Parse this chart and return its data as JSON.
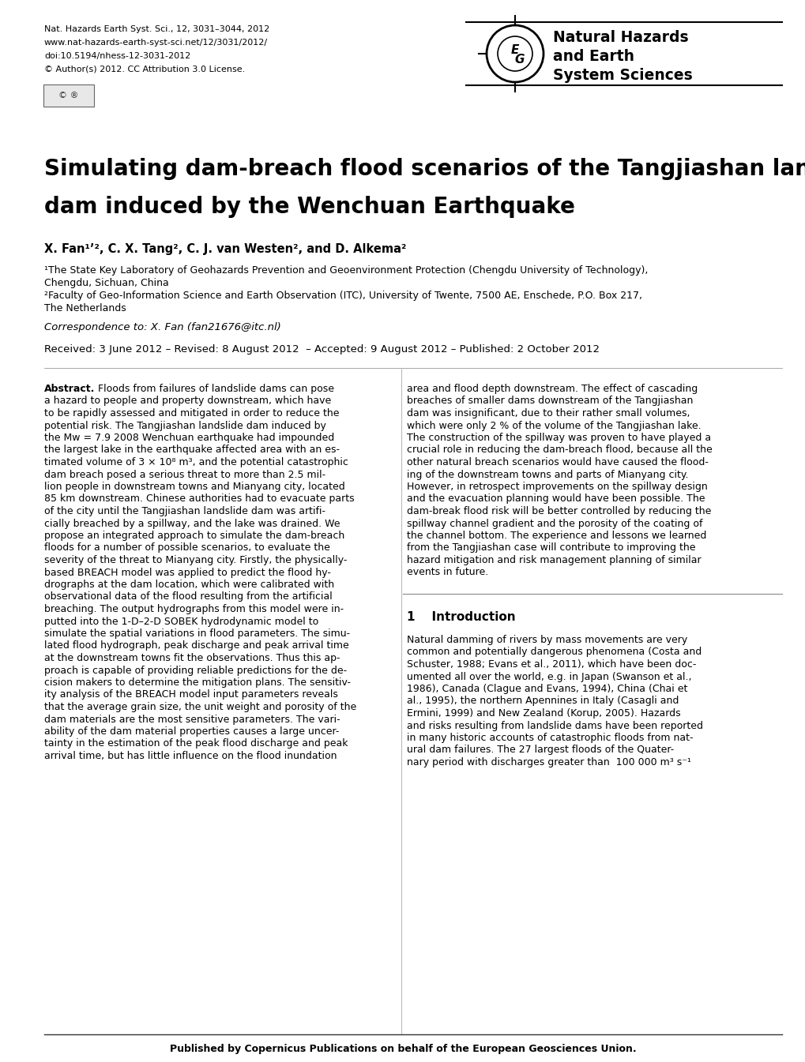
{
  "bg_color": "#ffffff",
  "header_left_lines": [
    "Nat. Hazards Earth Syst. Sci., 12, 3031–3044, 2012",
    "www.nat-hazards-earth-syst-sci.net/12/3031/2012/",
    "doi:10.5194/nhess-12-3031-2012",
    "© Author(s) 2012. CC Attribution 3.0 License."
  ],
  "journal_name_lines": [
    "Natural Hazards",
    "and Earth",
    "System Sciences"
  ],
  "paper_title_line1": "Simulating dam-breach flood scenarios of the Tangjiashan landslide",
  "paper_title_line2": "dam induced by the Wenchuan Earthquake",
  "authors_line": "X. Fan¹ʼ², C. X. Tang², C. J. van Westen², and D. Alkema²",
  "affil1a": "¹The State Key Laboratory of Geohazards Prevention and Geoenvironment Protection (Chengdu University of Technology),",
  "affil1b": "Chengdu, Sichuan, China",
  "affil2a": "²Faculty of Geo-Information Science and Earth Observation (ITC), University of Twente, 7500 AE, Enschede, P.O. Box 217,",
  "affil2b": "The Netherlands",
  "correspondence": "Correspondence to: X. Fan (fan21676@itc.nl)",
  "dates": "Received: 3 June 2012 – Revised: 8 August 2012  – Accepted: 9 August 2012 – Published: 2 October 2012",
  "abstract_label": "Abstract.",
  "abstract_left_lines": [
    "Floods from failures of landslide dams can pose",
    "a hazard to people and property downstream, which have",
    "to be rapidly assessed and mitigated in order to reduce the",
    "potential risk. The Tangjiashan landslide dam induced by",
    "the Mw = 7.9 2008 Wenchuan earthquake had impounded",
    "the largest lake in the earthquake affected area with an es-",
    "timated volume of 3 × 10⁸ m³, and the potential catastrophic",
    "dam breach posed a serious threat to more than 2.5 mil-",
    "lion people in downstream towns and Mianyang city, located",
    "85 km downstream. Chinese authorities had to evacuate parts",
    "of the city until the Tangjiashan landslide dam was artifi-",
    "cially breached by a spillway, and the lake was drained. We",
    "propose an integrated approach to simulate the dam-breach",
    "floods for a number of possible scenarios, to evaluate the",
    "severity of the threat to Mianyang city. Firstly, the physically-",
    "based BREACH model was applied to predict the flood hy-",
    "drographs at the dam location, which were calibrated with",
    "observational data of the flood resulting from the artificial",
    "breaching. The output hydrographs from this model were in-",
    "putted into the 1-D–2-D SOBEK hydrodynamic model to",
    "simulate the spatial variations in flood parameters. The simu-",
    "lated flood hydrograph, peak discharge and peak arrival time",
    "at the downstream towns fit the observations. Thus this ap-",
    "proach is capable of providing reliable predictions for the de-",
    "cision makers to determine the mitigation plans. The sensitiv-",
    "ity analysis of the BREACH model input parameters reveals",
    "that the average grain size, the unit weight and porosity of the",
    "dam materials are the most sensitive parameters. The vari-",
    "ability of the dam material properties causes a large uncer-",
    "tainty in the estimation of the peak flood discharge and peak",
    "arrival time, but has little influence on the flood inundation"
  ],
  "abstract_right_lines": [
    "area and flood depth downstream. The effect of cascading",
    "breaches of smaller dams downstream of the Tangjiashan",
    "dam was insignificant, due to their rather small volumes,",
    "which were only 2 % of the volume of the Tangjiashan lake.",
    "The construction of the spillway was proven to have played a",
    "crucial role in reducing the dam-breach flood, because all the",
    "other natural breach scenarios would have caused the flood-",
    "ing of the downstream towns and parts of Mianyang city.",
    "However, in retrospect improvements on the spillway design",
    "and the evacuation planning would have been possible. The",
    "dam-break flood risk will be better controlled by reducing the",
    "spillway channel gradient and the porosity of the coating of",
    "the channel bottom. The experience and lessons we learned",
    "from the Tangjiashan case will contribute to improving the",
    "hazard mitigation and risk management planning of similar",
    "events in future."
  ],
  "section1_title": "1    Introduction",
  "intro_right_lines": [
    "Natural damming of rivers by mass movements are very",
    "common and potentially dangerous phenomena (Costa and",
    "Schuster, 1988; Evans et al., 2011), which have been doc-",
    "umented all over the world, e.g. in Japan (Swanson et al.,",
    "1986), Canada (Clague and Evans, 1994), China (Chai et",
    "al., 1995), the northern Apennines in Italy (Casagli and",
    "Ermini, 1999) and New Zealand (Korup, 2005). Hazards",
    "and risks resulting from landslide dams have been reported",
    "in many historic accounts of catastrophic floods from nat-",
    "ural dam failures. The 27 largest floods of the Quater-",
    "nary period with discharges greater than  100 000 m³ s⁻¹"
  ],
  "footer": "Published by Copernicus Publications on behalf of the European Geosciences Union."
}
